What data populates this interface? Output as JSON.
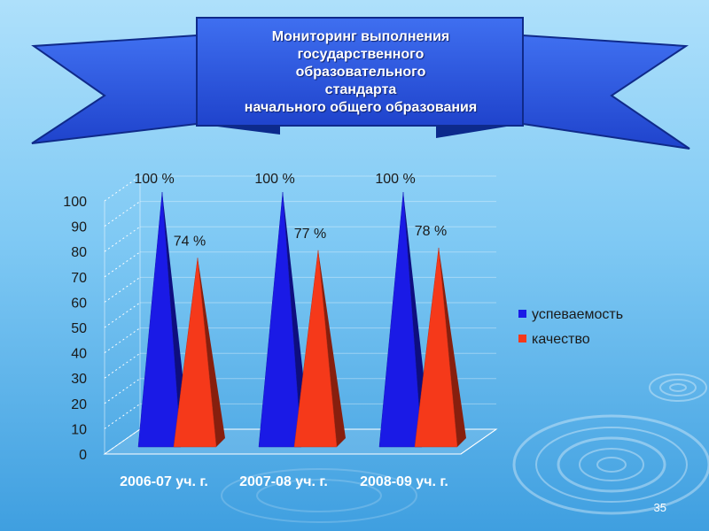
{
  "slide": {
    "title_lines": [
      "Мониторинг выполнения",
      "государственного",
      "образовательного",
      "стандарта",
      "начального общего образования"
    ],
    "page_number": "35"
  },
  "colors": {
    "background_top": "#aee0fb",
    "background_bottom": "#3f9fe0",
    "banner_fill": "#2a55e0",
    "series_1": "#1a1ae6",
    "series_2": "#f5391a"
  },
  "chart_data": {
    "type": "bar",
    "style": "3d-pyramid",
    "categories": [
      "2006-07 уч. г.",
      "2007-08 уч. г.",
      "2008-09 уч. г."
    ],
    "series": [
      {
        "name": "успеваемость",
        "values": [
          100,
          100,
          100
        ],
        "labels": [
          "100 %",
          "100 %",
          "100 %"
        ],
        "color": "#1a1ae6"
      },
      {
        "name": "качество",
        "values": [
          74,
          77,
          78
        ],
        "labels": [
          "74 %",
          "77 %",
          "78 %"
        ],
        "color": "#f5391a"
      }
    ],
    "ylim": [
      0,
      100
    ],
    "yticks": [
      "0",
      "10",
      "20",
      "30",
      "40",
      "50",
      "60",
      "70",
      "80",
      "90",
      "100"
    ],
    "grid": true,
    "legend_position": "right"
  }
}
